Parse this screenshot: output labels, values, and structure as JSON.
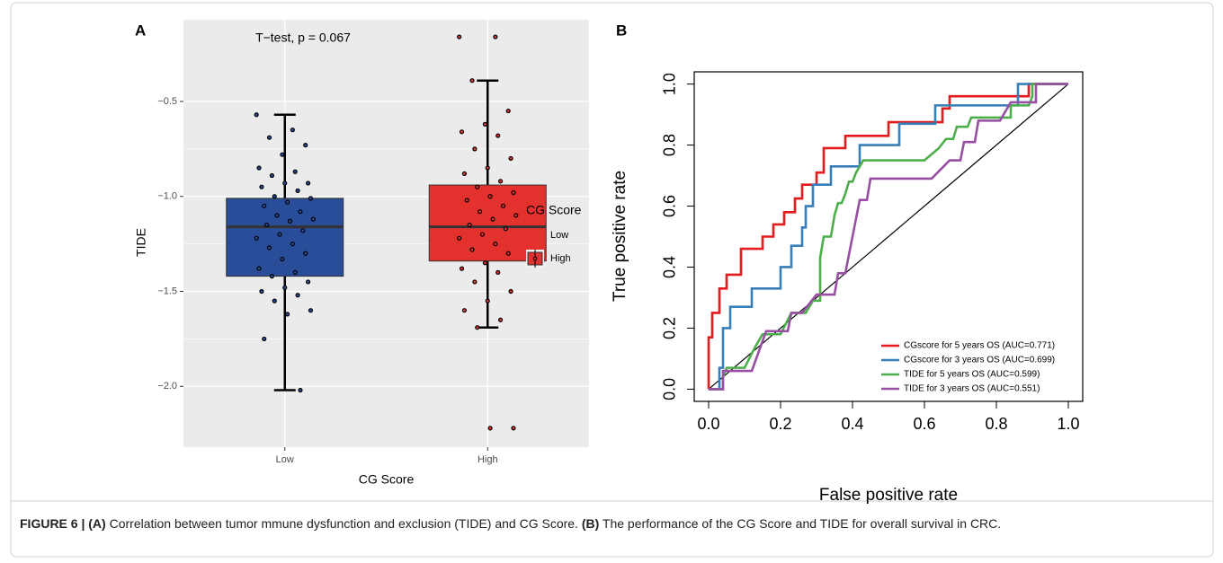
{
  "chart_data": [
    {
      "type": "box",
      "panel": "A",
      "annotation": "T−test, p = 0.067",
      "x_label": "CG Score",
      "y_label": "TIDE",
      "categories": [
        "Low",
        "High"
      ],
      "legend_title": "CG Score",
      "legend": "right",
      "grid": true,
      "ylim": [
        -2.32,
        -0.07
      ],
      "yticks": [
        {
          "value": -2,
          "label": "−2.0"
        },
        {
          "value": -1.5,
          "label": "−1.5"
        },
        {
          "value": -1,
          "label": "−1.0"
        },
        {
          "value": -0.5,
          "label": "−0.5"
        }
      ],
      "series": [
        {
          "name": "Low",
          "color": "#2a4d9a",
          "box": {
            "low": -2.02,
            "q1": -1.42,
            "median": -1.16,
            "q3": -1.01,
            "high": -0.57
          },
          "points": [
            -0.57,
            -0.65,
            -0.69,
            -0.73,
            -0.78,
            -0.85,
            -0.87,
            -0.89,
            -0.93,
            -0.93,
            -0.95,
            -0.97,
            -1.0,
            -1.01,
            -1.03,
            -1.05,
            -1.08,
            -1.1,
            -1.12,
            -1.13,
            -1.15,
            -1.18,
            -1.2,
            -1.22,
            -1.25,
            -1.27,
            -1.3,
            -1.33,
            -1.38,
            -1.4,
            -1.42,
            -1.45,
            -1.48,
            -1.5,
            -1.52,
            -1.55,
            -1.6,
            -1.62,
            -1.75,
            -2.02
          ]
        },
        {
          "name": "High",
          "color": "#e3322e",
          "box": {
            "low": -1.69,
            "q1": -1.34,
            "median": -1.16,
            "q3": -0.94,
            "high": -0.39
          },
          "points": [
            -0.16,
            -0.16,
            -0.39,
            -0.55,
            -0.62,
            -0.66,
            -0.68,
            -0.75,
            -0.8,
            -0.85,
            -0.88,
            -0.92,
            -0.95,
            -0.98,
            -1.0,
            -1.02,
            -1.05,
            -1.08,
            -1.1,
            -1.12,
            -1.15,
            -1.17,
            -1.2,
            -1.22,
            -1.25,
            -1.28,
            -1.3,
            -1.35,
            -1.38,
            -1.4,
            -1.45,
            -1.5,
            -1.55,
            -1.6,
            -1.65,
            -1.69,
            -2.22,
            -2.22
          ]
        }
      ]
    },
    {
      "type": "line",
      "panel": "B",
      "x_label": "False positive rate",
      "y_label": "True positive rate",
      "legend": "lower right",
      "xlim": [
        -0.04,
        1.04
      ],
      "ylim": [
        -0.04,
        1.04
      ],
      "xticks": [
        {
          "value": 0,
          "label": "0.0"
        },
        0.2,
        0.4,
        0.6,
        0.8,
        {
          "value": 1,
          "label": "1.0"
        }
      ],
      "yticks": [
        {
          "value": 0,
          "label": "0.0"
        },
        0.2,
        0.4,
        0.6,
        0.8,
        {
          "value": 1,
          "label": "1.0"
        }
      ],
      "series": [
        {
          "name": "CGscore for 5 years OS (AUC=0.771)",
          "color": "#e41a1c",
          "x": [
            0,
            0,
            0.01,
            0.01,
            0.03,
            0.03,
            0.05,
            0.05,
            0.09,
            0.09,
            0.15,
            0.15,
            0.18,
            0.18,
            0.21,
            0.21,
            0.24,
            0.24,
            0.26,
            0.26,
            0.3,
            0.3,
            0.32,
            0.32,
            0.38,
            0.38,
            0.5,
            0.5,
            0.65,
            0.65,
            0.67,
            0.67,
            0.89,
            0.89,
            1
          ],
          "values": [
            0,
            0.17,
            0.17,
            0.25,
            0.25,
            0.33,
            0.33,
            0.375,
            0.375,
            0.46,
            0.46,
            0.5,
            0.5,
            0.54,
            0.54,
            0.58,
            0.58,
            0.625,
            0.625,
            0.67,
            0.67,
            0.71,
            0.71,
            0.79,
            0.79,
            0.83,
            0.83,
            0.875,
            0.875,
            0.92,
            0.92,
            0.96,
            0.96,
            1,
            1
          ]
        },
        {
          "name": "CGscore for 3 years OS (AUC=0.699)",
          "color": "#377eb8",
          "x": [
            0,
            0.03,
            0.03,
            0.04,
            0.04,
            0.06,
            0.06,
            0.12,
            0.12,
            0.2,
            0.2,
            0.23,
            0.23,
            0.26,
            0.26,
            0.27,
            0.27,
            0.29,
            0.29,
            0.34,
            0.34,
            0.42,
            0.42,
            0.53,
            0.53,
            0.63,
            0.63,
            0.86,
            0.86,
            1
          ],
          "values": [
            0,
            0,
            0.07,
            0.07,
            0.2,
            0.2,
            0.27,
            0.27,
            0.33,
            0.33,
            0.4,
            0.4,
            0.47,
            0.47,
            0.53,
            0.53,
            0.6,
            0.6,
            0.67,
            0.67,
            0.73,
            0.73,
            0.8,
            0.8,
            0.87,
            0.87,
            0.93,
            0.93,
            1,
            1
          ]
        },
        {
          "name": "TIDE for 5 years OS (AUC=0.599)",
          "color": "#4daf4a",
          "x": [
            0,
            0.04,
            0.04,
            0.05,
            0.1,
            0.13,
            0.15,
            0.2,
            0.23,
            0.27,
            0.29,
            0.31,
            0.31,
            0.32,
            0.34,
            0.35,
            0.36,
            0.37,
            0.38,
            0.39,
            0.4,
            0.41,
            0.43,
            0.6,
            0.64,
            0.66,
            0.68,
            0.69,
            0.72,
            0.73,
            0.84,
            0.84,
            0.89,
            0.9,
            0.9,
            1
          ],
          "values": [
            0,
            0,
            0.04,
            0.07,
            0.07,
            0.14,
            0.18,
            0.18,
            0.25,
            0.25,
            0.29,
            0.29,
            0.43,
            0.5,
            0.5,
            0.57,
            0.61,
            0.61,
            0.64,
            0.68,
            0.68,
            0.71,
            0.75,
            0.75,
            0.79,
            0.82,
            0.82,
            0.86,
            0.86,
            0.89,
            0.89,
            0.93,
            0.93,
            0.96,
            1,
            1
          ]
        },
        {
          "name": "TIDE for 3 years OS (AUC=0.551)",
          "color": "#984ea3",
          "x": [
            0,
            0.04,
            0.04,
            0.12,
            0.16,
            0.22,
            0.23,
            0.26,
            0.3,
            0.35,
            0.36,
            0.38,
            0.4,
            0.41,
            0.42,
            0.44,
            0.45,
            0.62,
            0.67,
            0.7,
            0.71,
            0.74,
            0.75,
            0.81,
            0.84,
            0.91,
            0.91,
            1
          ],
          "values": [
            0,
            0,
            0.06,
            0.06,
            0.19,
            0.19,
            0.25,
            0.25,
            0.31,
            0.31,
            0.38,
            0.38,
            0.5,
            0.56,
            0.62,
            0.62,
            0.69,
            0.69,
            0.75,
            0.75,
            0.81,
            0.81,
            0.88,
            0.88,
            0.94,
            0.94,
            1,
            1
          ]
        }
      ]
    }
  ],
  "caption": {
    "parts": [
      {
        "text": "FIGURE 6 | ",
        "bold": true
      },
      {
        "text": "(A)",
        "bold": true
      },
      {
        "text": " Correlation between tumor mmune dysfunction and exclusion (TIDE) and CG Score. ",
        "bold": false
      },
      {
        "text": "(B)",
        "bold": true
      },
      {
        "text": " The performance of the CG Score and TIDE for overall survival in CRC.",
        "bold": false
      }
    ]
  }
}
